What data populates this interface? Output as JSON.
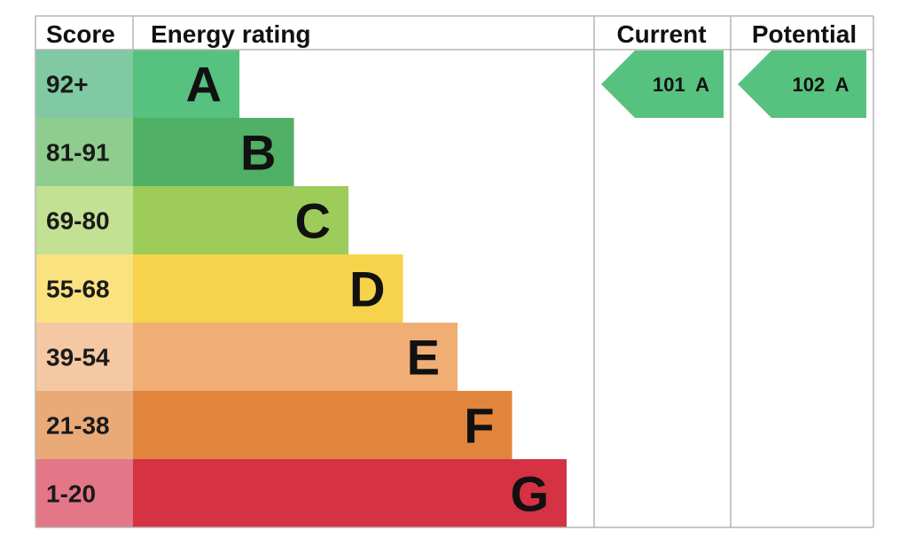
{
  "chart_data": {
    "type": "bar",
    "headers": {
      "score": "Score",
      "rating": "Energy rating",
      "current": "Current",
      "potential": "Potential"
    },
    "bands": [
      {
        "letter": "A",
        "range": "92+",
        "color": "#57c17f",
        "score_color": "#80c9a3"
      },
      {
        "letter": "B",
        "range": "81-91",
        "color": "#50b065",
        "score_color": "#8fcd8f"
      },
      {
        "letter": "C",
        "range": "69-80",
        "color": "#9dcc5a",
        "score_color": "#c3e193"
      },
      {
        "letter": "D",
        "range": "55-68",
        "color": "#f6d34a",
        "score_color": "#fae37f"
      },
      {
        "letter": "E",
        "range": "39-54",
        "color": "#f0ae75",
        "score_color": "#f4c8a3"
      },
      {
        "letter": "F",
        "range": "21-38",
        "color": "#e0853b",
        "score_color": "#eaaa78"
      },
      {
        "letter": "G",
        "range": "1-20",
        "color": "#d53244",
        "score_color": "#e37787"
      }
    ],
    "current": {
      "value": 101,
      "band": "A",
      "label": "101  A",
      "color": "#57c17f"
    },
    "potential": {
      "value": 102,
      "band": "A",
      "label": "102  A",
      "color": "#57c17f"
    }
  }
}
